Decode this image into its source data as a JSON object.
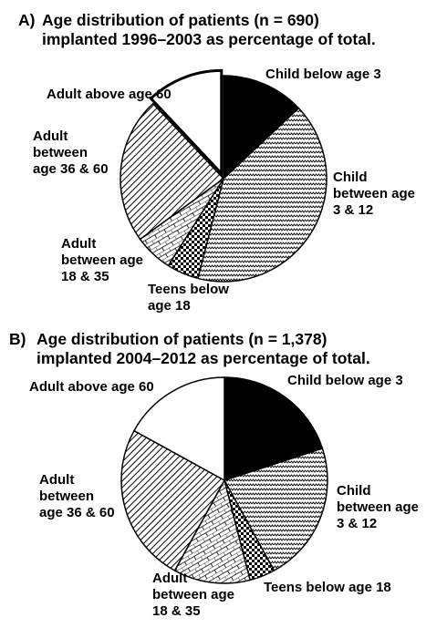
{
  "chart_data": [
    {
      "type": "pie",
      "panel": "A)",
      "title_lines": [
        "Age distribution of patients (n = 690)",
        "implanted 1996–2003 as percentage of total."
      ],
      "slices": [
        {
          "label": "Child below age 3",
          "value": 13,
          "fill": "solid-black",
          "exploded": false
        },
        {
          "label": "Child\nbetween age\n3 & 12",
          "value": 41,
          "fill": "wave",
          "exploded": false
        },
        {
          "label": "Teens below\nage 18",
          "value": 5,
          "fill": "checker",
          "exploded": false
        },
        {
          "label": "Adult\nbetween age\n18 & 35",
          "value": 6,
          "fill": "brick",
          "exploded": false
        },
        {
          "label": "Adult\nbetween\nage 36 & 60",
          "value": 23,
          "fill": "diagonal",
          "exploded": false
        },
        {
          "label": "Adult above age 60",
          "value": 12,
          "fill": "white",
          "exploded": true
        }
      ]
    },
    {
      "type": "pie",
      "panel": "B)",
      "title_lines": [
        "Age distribution of patients (n = 1,378)",
        "implanted 2004–2012 as percentage of total."
      ],
      "slices": [
        {
          "label": "Child below age 3",
          "value": 20,
          "fill": "solid-black",
          "exploded": false
        },
        {
          "label": "Child\nbetween age\n3 & 12",
          "value": 22,
          "fill": "wave",
          "exploded": false
        },
        {
          "label": "Teens below age 18",
          "value": 4,
          "fill": "checker",
          "exploded": false
        },
        {
          "label": "Adult\nbetween age\n18 & 35",
          "value": 12,
          "fill": "brick",
          "exploded": false
        },
        {
          "label": "Adult\nbetween\nage 36 & 60",
          "value": 25,
          "fill": "diagonal",
          "exploded": false
        },
        {
          "label": "Adult above age 60",
          "value": 17,
          "fill": "white",
          "exploded": false
        }
      ]
    }
  ]
}
